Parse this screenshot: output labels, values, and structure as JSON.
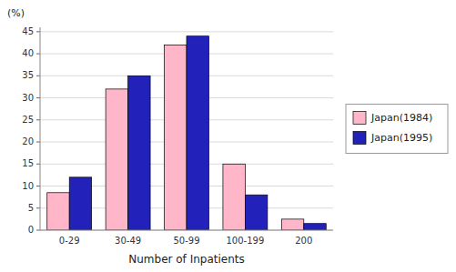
{
  "chart_data": {
    "type": "bar",
    "xlabel": "Number of Inpatients",
    "ylabel": "(%)",
    "categories": [
      "0-29",
      "30-49",
      "50-99",
      "100-199",
      "200"
    ],
    "series": [
      {
        "name": "Japan(1984)",
        "color": "#FFB6C8",
        "values": [
          8.5,
          32,
          42,
          15,
          2.5
        ]
      },
      {
        "name": "Japan(1995)",
        "color": "#2222BB",
        "values": [
          12,
          35,
          44,
          8,
          1.5
        ]
      }
    ],
    "ylim": [
      0,
      46
    ],
    "yticks": [
      0,
      5,
      10,
      15,
      20,
      25,
      30,
      35,
      40,
      45
    ],
    "grid": true,
    "legend": "right"
  }
}
